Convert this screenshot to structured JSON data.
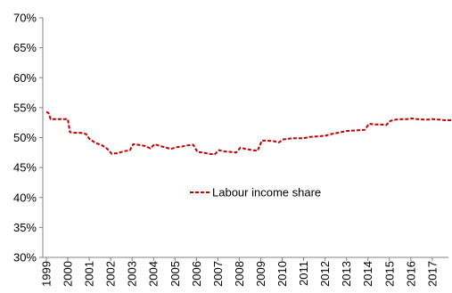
{
  "chart_data": {
    "type": "line",
    "title": "",
    "xlabel": "",
    "ylabel": "",
    "ylim": [
      0.3,
      0.7
    ],
    "y_ticks": [
      0.3,
      0.35,
      0.4,
      0.45,
      0.5,
      0.55,
      0.6,
      0.65,
      0.7
    ],
    "y_tick_labels": [
      "30%",
      "35%",
      "40%",
      "45%",
      "50%",
      "55%",
      "60%",
      "65%",
      "70%"
    ],
    "x_tick_labels": [
      "1999",
      "2000",
      "2001",
      "2002",
      "2003",
      "2004",
      "2005",
      "2006",
      "2007",
      "2008",
      "2009",
      "2010",
      "2011",
      "2012",
      "2013",
      "2014",
      "2015",
      "2016",
      "2017"
    ],
    "grid": false,
    "legend_position": "center",
    "series": [
      {
        "name": "Labour income share",
        "color": "#c00000",
        "line_style": "dashed",
        "points": [
          [
            1999.0,
            0.543
          ],
          [
            1999.1,
            0.541
          ],
          [
            1999.2,
            0.531
          ],
          [
            1999.4,
            0.531
          ],
          [
            1999.6,
            0.531
          ],
          [
            1999.8,
            0.531
          ],
          [
            2000.0,
            0.531
          ],
          [
            2000.1,
            0.509
          ],
          [
            2000.3,
            0.508
          ],
          [
            2000.6,
            0.508
          ],
          [
            2000.85,
            0.506
          ],
          [
            2001.0,
            0.498
          ],
          [
            2001.3,
            0.491
          ],
          [
            2001.6,
            0.487
          ],
          [
            2001.85,
            0.481
          ],
          [
            2002.05,
            0.473
          ],
          [
            2002.3,
            0.474
          ],
          [
            2002.6,
            0.477
          ],
          [
            2002.9,
            0.479
          ],
          [
            2003.05,
            0.489
          ],
          [
            2003.3,
            0.488
          ],
          [
            2003.6,
            0.486
          ],
          [
            2003.85,
            0.482
          ],
          [
            2004.05,
            0.489
          ],
          [
            2004.3,
            0.486
          ],
          [
            2004.6,
            0.483
          ],
          [
            2004.8,
            0.481
          ],
          [
            2005.05,
            0.484
          ],
          [
            2005.3,
            0.485
          ],
          [
            2005.6,
            0.487
          ],
          [
            2005.85,
            0.488
          ],
          [
            2006.05,
            0.476
          ],
          [
            2006.3,
            0.475
          ],
          [
            2006.6,
            0.473
          ],
          [
            2006.85,
            0.472
          ],
          [
            2007.05,
            0.479
          ],
          [
            2007.3,
            0.477
          ],
          [
            2007.6,
            0.476
          ],
          [
            2007.85,
            0.475
          ],
          [
            2008.05,
            0.483
          ],
          [
            2008.3,
            0.481
          ],
          [
            2008.6,
            0.479
          ],
          [
            2008.85,
            0.478
          ],
          [
            2009.05,
            0.495
          ],
          [
            2009.3,
            0.495
          ],
          [
            2009.6,
            0.494
          ],
          [
            2009.85,
            0.492
          ],
          [
            2010.05,
            0.497
          ],
          [
            2010.5,
            0.499
          ],
          [
            2011.0,
            0.499
          ],
          [
            2011.3,
            0.501
          ],
          [
            2011.6,
            0.502
          ],
          [
            2012.0,
            0.503
          ],
          [
            2012.3,
            0.506
          ],
          [
            2012.6,
            0.508
          ],
          [
            2013.0,
            0.511
          ],
          [
            2013.5,
            0.512
          ],
          [
            2013.85,
            0.513
          ],
          [
            2014.05,
            0.523
          ],
          [
            2014.3,
            0.522
          ],
          [
            2014.6,
            0.522
          ],
          [
            2014.85,
            0.521
          ],
          [
            2015.05,
            0.528
          ],
          [
            2015.3,
            0.53
          ],
          [
            2015.6,
            0.531
          ],
          [
            2015.85,
            0.531
          ],
          [
            2016.05,
            0.532
          ],
          [
            2016.3,
            0.531
          ],
          [
            2016.6,
            0.53
          ],
          [
            2016.85,
            0.53
          ],
          [
            2017.0,
            0.531
          ],
          [
            2017.3,
            0.53
          ],
          [
            2017.6,
            0.529
          ],
          [
            2017.9,
            0.529
          ]
        ]
      }
    ]
  }
}
